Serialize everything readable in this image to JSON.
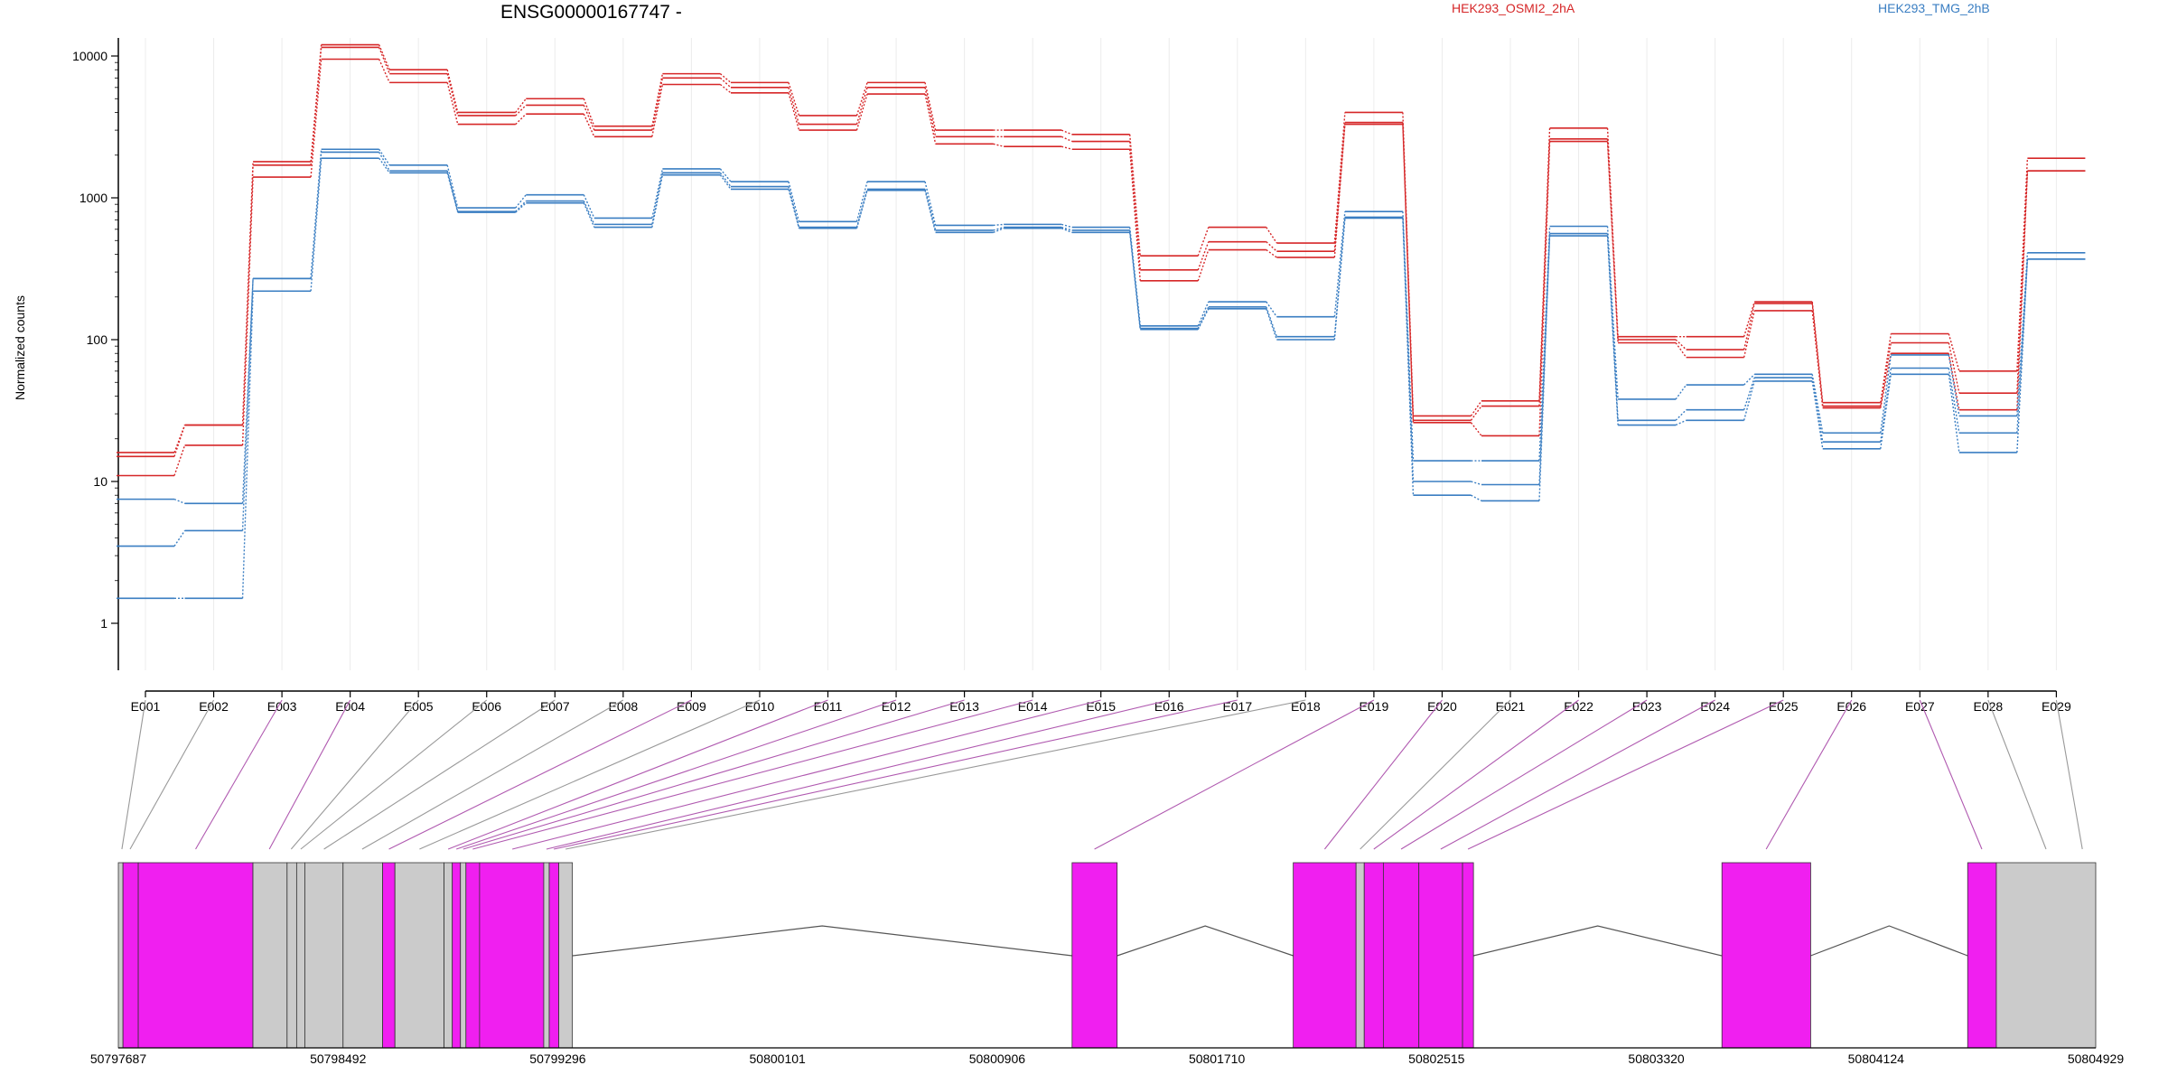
{
  "chart_data": {
    "type": "line",
    "title": "ENSG00000167747 -",
    "ylabel": "Normalized counts",
    "xlabel": "",
    "yscale": "log",
    "ylim": [
      0.5,
      15000
    ],
    "y_ticks": [
      1,
      10,
      100,
      1000,
      10000
    ],
    "y_tick_labels": [
      "1",
      "10",
      "100",
      "1000",
      "10000"
    ],
    "grid": false,
    "legend_placement": "top-right",
    "legend": [
      {
        "name": "HEK293_OSMI2_2hA",
        "color": "#d62728"
      },
      {
        "name": "HEK293_TMG_2hB",
        "color": "#3a7ec2"
      }
    ],
    "categories": [
      "E001",
      "E002",
      "E003",
      "E004",
      "E005",
      "E006",
      "E007",
      "E008",
      "E009",
      "E010",
      "E011",
      "E012",
      "E013",
      "E014",
      "E015",
      "E016",
      "E017",
      "E018",
      "E019",
      "E020",
      "E021",
      "E022",
      "E023",
      "E024",
      "E025",
      "E026",
      "E027",
      "E028",
      "E029"
    ],
    "series": [
      {
        "name": "HEK293_OSMI2_2hA",
        "group": "a",
        "color": "#d62728",
        "values": [
          16,
          25,
          1800,
          12000,
          8000,
          4000,
          5000,
          3200,
          7500,
          6500,
          3800,
          6500,
          3000,
          3000,
          2800,
          390,
          620,
          480,
          4000,
          29,
          37,
          3100,
          105,
          105,
          185,
          36,
          110,
          60,
          1900
        ]
      },
      {
        "name": "",
        "group": "a",
        "color": "#d62728",
        "values": [
          15,
          25,
          1700,
          11500,
          7500,
          3800,
          4500,
          3000,
          7000,
          6000,
          3300,
          6000,
          2700,
          2700,
          2500,
          310,
          490,
          420,
          3400,
          27,
          34,
          2600,
          100,
          85,
          180,
          34,
          95,
          42,
          1550
        ]
      },
      {
        "name": "",
        "group": "a",
        "color": "#d62728",
        "values": [
          11,
          18,
          1400,
          9500,
          6500,
          3300,
          3900,
          2700,
          6300,
          5500,
          3000,
          5400,
          2400,
          2300,
          2200,
          260,
          430,
          380,
          3300,
          26,
          21,
          2500,
          95,
          75,
          160,
          33,
          80,
          32,
          1550
        ]
      },
      {
        "name": "",
        "group": "b",
        "color": "#3a7ec2",
        "values": [
          7.5,
          7,
          270,
          2200,
          1700,
          850,
          1050,
          720,
          1600,
          1300,
          680,
          1300,
          640,
          650,
          620,
          125,
          185,
          145,
          800,
          14,
          14,
          630,
          38,
          48,
          57,
          22,
          78,
          29,
          410
        ]
      },
      {
        "name": "",
        "group": "b",
        "color": "#3a7ec2",
        "values": [
          3.5,
          4.5,
          270,
          2100,
          1550,
          800,
          950,
          650,
          1500,
          1200,
          620,
          1150,
          590,
          620,
          590,
          120,
          170,
          105,
          730,
          10,
          9.5,
          560,
          27,
          32,
          54,
          19,
          63,
          22,
          370
        ]
      },
      {
        "name": "",
        "group": "b",
        "color": "#3a7ec2",
        "values": [
          1.5,
          1.5,
          220,
          1900,
          1500,
          790,
          920,
          620,
          1450,
          1150,
          610,
          1130,
          570,
          610,
          570,
          118,
          165,
          100,
          720,
          8,
          7.3,
          540,
          25,
          27,
          51,
          17,
          57,
          16,
          370
        ]
      }
    ],
    "gene_model": {
      "coordinate_ticks": [
        "50797687",
        "50798492",
        "50799296",
        "50800101",
        "50800906",
        "50801710",
        "50802515",
        "50803320",
        "50804124",
        "50804929"
      ],
      "coordinate_range": [
        50797687,
        50804929
      ],
      "exon_color": "#f01ff0",
      "utr_color": "#cbcbcb",
      "exons": [
        {
          "start": 50797687,
          "end": 50797704,
          "type": "utr"
        },
        {
          "start": 50797704,
          "end": 50797760,
          "type": "cds"
        },
        {
          "start": 50797760,
          "end": 50798180,
          "type": "cds"
        },
        {
          "start": 50798180,
          "end": 50798305,
          "type": "utr"
        },
        {
          "start": 50798305,
          "end": 50798340,
          "type": "utr"
        },
        {
          "start": 50798340,
          "end": 50798370,
          "type": "utr"
        },
        {
          "start": 50798370,
          "end": 50798510,
          "type": "utr"
        },
        {
          "start": 50798510,
          "end": 50798655,
          "type": "utr"
        },
        {
          "start": 50798655,
          "end": 50798700,
          "type": "cds"
        },
        {
          "start": 50798700,
          "end": 50798880,
          "type": "utr"
        },
        {
          "start": 50798880,
          "end": 50798910,
          "type": "utr"
        },
        {
          "start": 50798910,
          "end": 50798940,
          "type": "cds"
        },
        {
          "start": 50798940,
          "end": 50798960,
          "type": "utr"
        },
        {
          "start": 50798960,
          "end": 50799010,
          "type": "cds"
        },
        {
          "start": 50799010,
          "end": 50799245,
          "type": "cds"
        },
        {
          "start": 50799245,
          "end": 50799265,
          "type": "utr"
        },
        {
          "start": 50799265,
          "end": 50799300,
          "type": "cds"
        },
        {
          "start": 50799300,
          "end": 50799350,
          "type": "utr"
        },
        {
          "start": 50801180,
          "end": 50801345,
          "type": "cds"
        },
        {
          "start": 50801990,
          "end": 50802220,
          "type": "cds"
        },
        {
          "start": 50802220,
          "end": 50802250,
          "type": "utr"
        },
        {
          "start": 50802250,
          "end": 50802320,
          "type": "cds"
        },
        {
          "start": 50802320,
          "end": 50802450,
          "type": "cds"
        },
        {
          "start": 50802450,
          "end": 50802610,
          "type": "cds"
        },
        {
          "start": 50802610,
          "end": 50802650,
          "type": "cds"
        },
        {
          "start": 50803560,
          "end": 50803885,
          "type": "cds"
        },
        {
          "start": 50804460,
          "end": 50804565,
          "type": "cds"
        },
        {
          "start": 50804565,
          "end": 50804929,
          "type": "utr"
        }
      ],
      "exon_bin_connections": [
        {
          "bin": "E001",
          "coord": 50797700,
          "color": "#999999"
        },
        {
          "bin": "E002",
          "coord": 50797730,
          "color": "#999999"
        },
        {
          "bin": "E003",
          "coord": 50797970,
          "color": "#b05ab0"
        },
        {
          "bin": "E004",
          "coord": 50798240,
          "color": "#b05ab0"
        },
        {
          "bin": "E005",
          "coord": 50798320,
          "color": "#999999"
        },
        {
          "bin": "E006",
          "coord": 50798355,
          "color": "#999999"
        },
        {
          "bin": "E007",
          "coord": 50798440,
          "color": "#999999"
        },
        {
          "bin": "E008",
          "coord": 50798580,
          "color": "#999999"
        },
        {
          "bin": "E009",
          "coord": 50798678,
          "color": "#b05ab0"
        },
        {
          "bin": "E010",
          "coord": 50798790,
          "color": "#999999"
        },
        {
          "bin": "E011",
          "coord": 50798895,
          "color": "#b05ab0"
        },
        {
          "bin": "E012",
          "coord": 50798925,
          "color": "#b05ab0"
        },
        {
          "bin": "E013",
          "coord": 50798950,
          "color": "#b05ab0"
        },
        {
          "bin": "E014",
          "coord": 50798985,
          "color": "#b05ab0"
        },
        {
          "bin": "E015",
          "coord": 50799130,
          "color": "#b05ab0"
        },
        {
          "bin": "E016",
          "coord": 50799255,
          "color": "#b05ab0"
        },
        {
          "bin": "E017",
          "coord": 50799282,
          "color": "#b05ab0"
        },
        {
          "bin": "E018",
          "coord": 50799325,
          "color": "#999999"
        },
        {
          "bin": "E019",
          "coord": 50801262,
          "color": "#b05ab0"
        },
        {
          "bin": "E020",
          "coord": 50802105,
          "color": "#b05ab0"
        },
        {
          "bin": "E021",
          "coord": 50802235,
          "color": "#999999"
        },
        {
          "bin": "E022",
          "coord": 50802285,
          "color": "#b05ab0"
        },
        {
          "bin": "E023",
          "coord": 50802385,
          "color": "#b05ab0"
        },
        {
          "bin": "E024",
          "coord": 50802530,
          "color": "#b05ab0"
        },
        {
          "bin": "E025",
          "coord": 50802630,
          "color": "#b05ab0"
        },
        {
          "bin": "E026",
          "coord": 50803722,
          "color": "#b05ab0"
        },
        {
          "bin": "E027",
          "coord": 50804512,
          "color": "#b05ab0"
        },
        {
          "bin": "E028",
          "coord": 50804747,
          "color": "#999999"
        }
      ]
    }
  }
}
